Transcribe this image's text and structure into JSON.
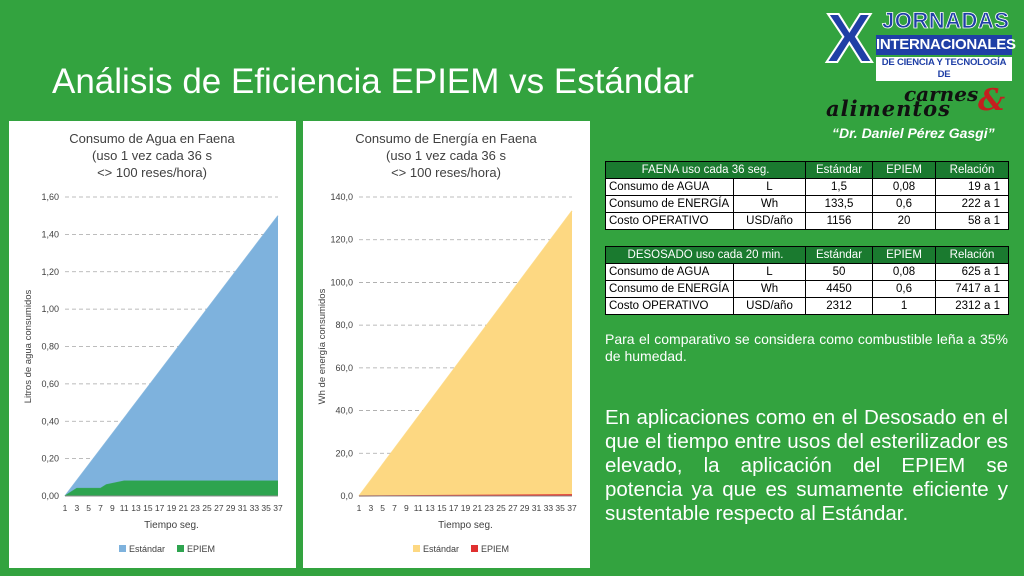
{
  "slide": {
    "title": "Análisis de Eficiencia EPIEM vs Estándar",
    "note": "Para el comparativo se considera como combustible leña a 35% de humedad.",
    "body": "En aplicaciones como en el Desosado en el que el tiempo entre usos del esterilizador es elevado, la aplicación del EPIEM se potencia ya que es sumamente eficiente y sustentable respecto al Estándar."
  },
  "logo": {
    "letter": "X",
    "line1": "JORNADAS",
    "line2": "INTERNACIONALES",
    "line3": "DE CIENCIA Y TECNOLOGÍA DE",
    "word1": "carnes",
    "amp": "&",
    "word2": "alimentos",
    "honoree": "“Dr. Daniel Pérez Gasgi”"
  },
  "tables": [
    {
      "header": [
        "FAENA uso cada 36 seg.",
        "Estándar",
        "EPIEM",
        "Relación"
      ],
      "rows": [
        [
          "Consumo de AGUA",
          "L",
          "1,5",
          "0,08",
          "19 a 1"
        ],
        [
          "Consumo de ENERGÍA",
          "Wh",
          "133,5",
          "0,6",
          "222 a 1"
        ],
        [
          "Costo OPERATIVO",
          "USD/año",
          "1156",
          "20",
          "58 a 1"
        ]
      ]
    },
    {
      "header": [
        "DESOSADO uso cada 20 min.",
        "Estándar",
        "EPIEM",
        "Relación"
      ],
      "rows": [
        [
          "Consumo de AGUA",
          "L",
          "50",
          "0,08",
          "625 a 1"
        ],
        [
          "Consumo de ENERGÍA",
          "Wh",
          "4450",
          "0,6",
          "7417 a 1"
        ],
        [
          "Costo OPERATIVO",
          "USD/año",
          "2312",
          "1",
          "2312 a 1"
        ]
      ]
    }
  ],
  "chart_data": [
    {
      "type": "area",
      "title": "Consumo de Agua en Faena\n(uso 1 vez cada 36 s\n<> 100 reses/hora)",
      "xlabel": "Tiempo seg.",
      "ylabel": "Litros de agua consumidos",
      "x_ticks": [
        1,
        3,
        5,
        7,
        9,
        11,
        13,
        15,
        17,
        19,
        21,
        23,
        25,
        27,
        29,
        31,
        33,
        35,
        37
      ],
      "y_ticks": [
        "0,00",
        "0,20",
        "0,40",
        "0,60",
        "0,80",
        "1,00",
        "1,20",
        "1,40",
        "1,60"
      ],
      "ylim": [
        0,
        1.6
      ],
      "xlim": [
        1,
        37
      ],
      "grid": true,
      "legend": "bottom",
      "series": [
        {
          "name": "Estándar",
          "color": "#7eb2dd",
          "x": [
            1,
            37
          ],
          "y": [
            0,
            1.5
          ]
        },
        {
          "name": "EPIEM",
          "color": "#2ea44f",
          "x": [
            1,
            3,
            4,
            7,
            8,
            11,
            37
          ],
          "y": [
            0,
            0.04,
            0.04,
            0.04,
            0.06,
            0.08,
            0.08
          ]
        }
      ]
    },
    {
      "type": "area",
      "title": "Consumo de Energía en Faena\n(uso 1 vez cada 36 s\n<> 100 reses/hora)",
      "xlabel": "Tiempo seg.",
      "ylabel": "Wh de energía consumidos",
      "x_ticks": [
        1,
        3,
        5,
        7,
        9,
        11,
        13,
        15,
        17,
        19,
        21,
        23,
        25,
        27,
        29,
        31,
        33,
        35,
        37
      ],
      "y_ticks": [
        "0,0",
        "20,0",
        "40,0",
        "60,0",
        "80,0",
        "100,0",
        "120,0",
        "140,0"
      ],
      "ylim": [
        0,
        140
      ],
      "xlim": [
        1,
        37
      ],
      "grid": true,
      "legend": "bottom",
      "series": [
        {
          "name": "Estándar",
          "color": "#fdd882",
          "x": [
            1,
            37
          ],
          "y": [
            0,
            133.5
          ]
        },
        {
          "name": "EPIEM",
          "color": "#e03030",
          "x": [
            1,
            37
          ],
          "y": [
            0,
            0.6
          ]
        }
      ]
    }
  ]
}
